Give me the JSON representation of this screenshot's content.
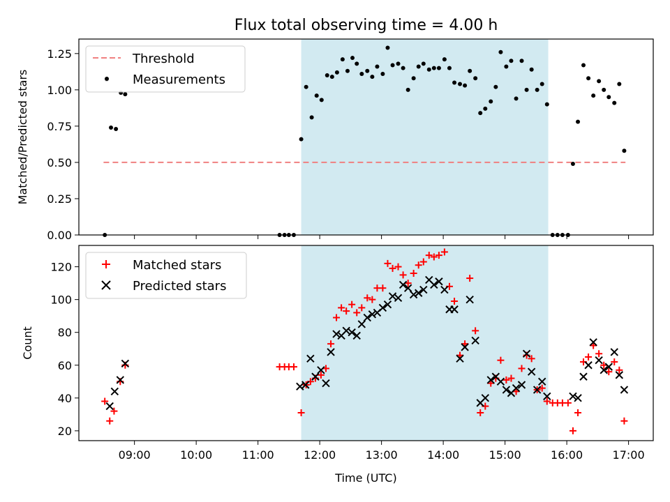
{
  "chart_data": [
    {
      "type": "scatter",
      "title": "Flux total observing time = 4.00 h",
      "xlabel": "",
      "ylabel": "Matched/Predicted stars",
      "xlim": [
        8.1,
        17.4
      ],
      "ylim": [
        0.0,
        1.35
      ],
      "yticks": [
        0.0,
        0.25,
        0.5,
        0.75,
        1.0,
        1.25
      ],
      "ytick_labels": [
        "0.00",
        "0.25",
        "0.50",
        "0.75",
        "1.00",
        "1.25"
      ],
      "shaded_span": [
        11.7,
        15.7
      ],
      "shaded_color": "#add8e6",
      "legend_position": "top-left",
      "threshold": {
        "name": "Threshold",
        "value": 0.5,
        "x_range": [
          8.5,
          16.95
        ],
        "color": "#f08080"
      },
      "series": [
        {
          "name": "Measurements",
          "marker": "dot",
          "color": "#000000",
          "points": [
            [
              8.52,
              0.0
            ],
            [
              8.55,
              1.07
            ],
            [
              8.62,
              0.74
            ],
            [
              8.7,
              0.73
            ],
            [
              8.78,
              0.98
            ],
            [
              8.85,
              0.97
            ],
            [
              11.35,
              0.0
            ],
            [
              11.43,
              0.0
            ],
            [
              11.5,
              0.0
            ],
            [
              11.58,
              0.0
            ],
            [
              11.7,
              0.66
            ],
            [
              11.78,
              1.02
            ],
            [
              11.87,
              0.81
            ],
            [
              11.95,
              0.96
            ],
            [
              12.03,
              0.93
            ],
            [
              12.12,
              1.1
            ],
            [
              12.2,
              1.09
            ],
            [
              12.28,
              1.12
            ],
            [
              12.37,
              1.21
            ],
            [
              12.45,
              1.13
            ],
            [
              12.53,
              1.22
            ],
            [
              12.6,
              1.18
            ],
            [
              12.68,
              1.11
            ],
            [
              12.77,
              1.13
            ],
            [
              12.85,
              1.09
            ],
            [
              12.93,
              1.16
            ],
            [
              13.02,
              1.11
            ],
            [
              13.1,
              1.29
            ],
            [
              13.18,
              1.17
            ],
            [
              13.27,
              1.18
            ],
            [
              13.35,
              1.15
            ],
            [
              13.43,
              1.0
            ],
            [
              13.52,
              1.08
            ],
            [
              13.6,
              1.16
            ],
            [
              13.68,
              1.18
            ],
            [
              13.77,
              1.14
            ],
            [
              13.85,
              1.15
            ],
            [
              13.93,
              1.15
            ],
            [
              14.02,
              1.21
            ],
            [
              14.1,
              1.15
            ],
            [
              14.18,
              1.05
            ],
            [
              14.27,
              1.04
            ],
            [
              14.35,
              1.03
            ],
            [
              14.43,
              1.13
            ],
            [
              14.52,
              1.08
            ],
            [
              14.6,
              0.84
            ],
            [
              14.68,
              0.87
            ],
            [
              14.77,
              0.92
            ],
            [
              14.85,
              1.02
            ],
            [
              14.93,
              1.26
            ],
            [
              15.02,
              1.16
            ],
            [
              15.1,
              1.2
            ],
            [
              15.18,
              0.94
            ],
            [
              15.27,
              1.2
            ],
            [
              15.35,
              1.0
            ],
            [
              15.43,
              1.14
            ],
            [
              15.52,
              1.0
            ],
            [
              15.6,
              1.04
            ],
            [
              15.68,
              0.9
            ],
            [
              15.77,
              0.0
            ],
            [
              15.85,
              0.0
            ],
            [
              15.93,
              0.0
            ],
            [
              16.02,
              0.0
            ],
            [
              16.1,
              0.49
            ],
            [
              16.18,
              0.78
            ],
            [
              16.27,
              1.17
            ],
            [
              16.35,
              1.08
            ],
            [
              16.43,
              0.96
            ],
            [
              16.52,
              1.06
            ],
            [
              16.6,
              1.0
            ],
            [
              16.68,
              0.95
            ],
            [
              16.77,
              0.91
            ],
            [
              16.85,
              1.04
            ],
            [
              16.93,
              0.58
            ]
          ]
        }
      ]
    },
    {
      "type": "scatter",
      "title": "",
      "xlabel": "Time (UTC)",
      "ylabel": "Count",
      "xlim": [
        8.1,
        17.4
      ],
      "ylim": [
        14,
        133
      ],
      "xticks": [
        9,
        10,
        11,
        12,
        13,
        14,
        15,
        16,
        17
      ],
      "xtick_labels": [
        "09:00",
        "10:00",
        "11:00",
        "12:00",
        "13:00",
        "14:00",
        "15:00",
        "16:00",
        "17:00"
      ],
      "yticks": [
        20,
        40,
        60,
        80,
        100,
        120
      ],
      "ytick_labels": [
        "20",
        "40",
        "60",
        "80",
        "100",
        "120"
      ],
      "shaded_span": [
        11.7,
        15.7
      ],
      "shaded_color": "#add8e6",
      "legend_position": "top-left",
      "series": [
        {
          "name": "Matched stars",
          "marker": "plus",
          "color": "#ff0000",
          "points": [
            [
              8.52,
              38
            ],
            [
              8.6,
              26
            ],
            [
              8.67,
              32
            ],
            [
              8.77,
              50
            ],
            [
              8.85,
              60
            ],
            [
              11.35,
              59
            ],
            [
              11.43,
              59
            ],
            [
              11.5,
              59
            ],
            [
              11.58,
              59
            ],
            [
              11.7,
              31
            ],
            [
              11.78,
              48
            ],
            [
              11.85,
              50
            ],
            [
              11.93,
              52
            ],
            [
              12.02,
              54
            ],
            [
              12.1,
              58
            ],
            [
              12.18,
              73
            ],
            [
              12.27,
              89
            ],
            [
              12.35,
              95
            ],
            [
              12.43,
              93
            ],
            [
              12.52,
              97
            ],
            [
              12.6,
              92
            ],
            [
              12.68,
              95
            ],
            [
              12.77,
              101
            ],
            [
              12.85,
              100
            ],
            [
              12.93,
              107
            ],
            [
              13.02,
              107
            ],
            [
              13.1,
              122
            ],
            [
              13.18,
              119
            ],
            [
              13.27,
              120
            ],
            [
              13.35,
              115
            ],
            [
              13.43,
              110
            ],
            [
              13.52,
              116
            ],
            [
              13.6,
              121
            ],
            [
              13.68,
              123
            ],
            [
              13.77,
              127
            ],
            [
              13.85,
              126
            ],
            [
              13.93,
              127
            ],
            [
              14.02,
              129
            ],
            [
              14.1,
              108
            ],
            [
              14.18,
              99
            ],
            [
              14.27,
              66
            ],
            [
              14.35,
              73
            ],
            [
              14.43,
              113
            ],
            [
              14.52,
              81
            ],
            [
              14.6,
              31
            ],
            [
              14.68,
              35
            ],
            [
              14.77,
              49
            ],
            [
              14.85,
              52
            ],
            [
              14.93,
              63
            ],
            [
              15.02,
              51
            ],
            [
              15.1,
              52
            ],
            [
              15.18,
              44
            ],
            [
              15.27,
              58
            ],
            [
              15.35,
              66
            ],
            [
              15.43,
              64
            ],
            [
              15.52,
              45
            ],
            [
              15.6,
              46
            ],
            [
              15.68,
              38
            ],
            [
              15.77,
              37
            ],
            [
              15.85,
              37
            ],
            [
              15.93,
              37
            ],
            [
              16.02,
              37
            ],
            [
              16.1,
              20
            ],
            [
              16.18,
              31
            ],
            [
              16.27,
              62
            ],
            [
              16.35,
              65
            ],
            [
              16.43,
              72
            ],
            [
              16.52,
              67
            ],
            [
              16.6,
              60
            ],
            [
              16.68,
              56
            ],
            [
              16.77,
              62
            ],
            [
              16.85,
              57
            ],
            [
              16.93,
              26
            ]
          ]
        },
        {
          "name": "Predicted stars",
          "marker": "x",
          "color": "#000000",
          "points": [
            [
              8.6,
              35
            ],
            [
              8.68,
              44
            ],
            [
              8.77,
              51
            ],
            [
              8.85,
              61
            ],
            [
              11.68,
              47
            ],
            [
              11.77,
              48
            ],
            [
              11.85,
              64
            ],
            [
              11.93,
              53
            ],
            [
              12.02,
              57
            ],
            [
              12.1,
              49
            ],
            [
              12.18,
              68
            ],
            [
              12.27,
              79
            ],
            [
              12.35,
              78
            ],
            [
              12.43,
              81
            ],
            [
              12.52,
              80
            ],
            [
              12.6,
              78
            ],
            [
              12.68,
              85
            ],
            [
              12.77,
              89
            ],
            [
              12.85,
              91
            ],
            [
              12.93,
              92
            ],
            [
              13.02,
              95
            ],
            [
              13.1,
              97
            ],
            [
              13.18,
              102
            ],
            [
              13.27,
              101
            ],
            [
              13.35,
              109
            ],
            [
              13.43,
              107
            ],
            [
              13.52,
              103
            ],
            [
              13.6,
              104
            ],
            [
              13.68,
              106
            ],
            [
              13.77,
              112
            ],
            [
              13.85,
              109
            ],
            [
              13.93,
              111
            ],
            [
              14.02,
              106
            ],
            [
              14.1,
              94
            ],
            [
              14.18,
              94
            ],
            [
              14.27,
              64
            ],
            [
              14.35,
              71
            ],
            [
              14.43,
              100
            ],
            [
              14.52,
              75
            ],
            [
              14.6,
              37
            ],
            [
              14.68,
              40
            ],
            [
              14.77,
              51
            ],
            [
              14.85,
              53
            ],
            [
              14.93,
              50
            ],
            [
              15.02,
              45
            ],
            [
              15.1,
              43
            ],
            [
              15.18,
              46
            ],
            [
              15.27,
              48
            ],
            [
              15.35,
              67
            ],
            [
              15.43,
              56
            ],
            [
              15.52,
              45
            ],
            [
              15.6,
              50
            ],
            [
              15.68,
              41
            ],
            [
              16.1,
              41
            ],
            [
              16.18,
              40
            ],
            [
              16.27,
              53
            ],
            [
              16.35,
              60
            ],
            [
              16.43,
              74
            ],
            [
              16.52,
              63
            ],
            [
              16.6,
              57
            ],
            [
              16.68,
              59
            ],
            [
              16.77,
              68
            ],
            [
              16.85,
              54
            ],
            [
              16.93,
              45
            ]
          ]
        }
      ]
    }
  ]
}
